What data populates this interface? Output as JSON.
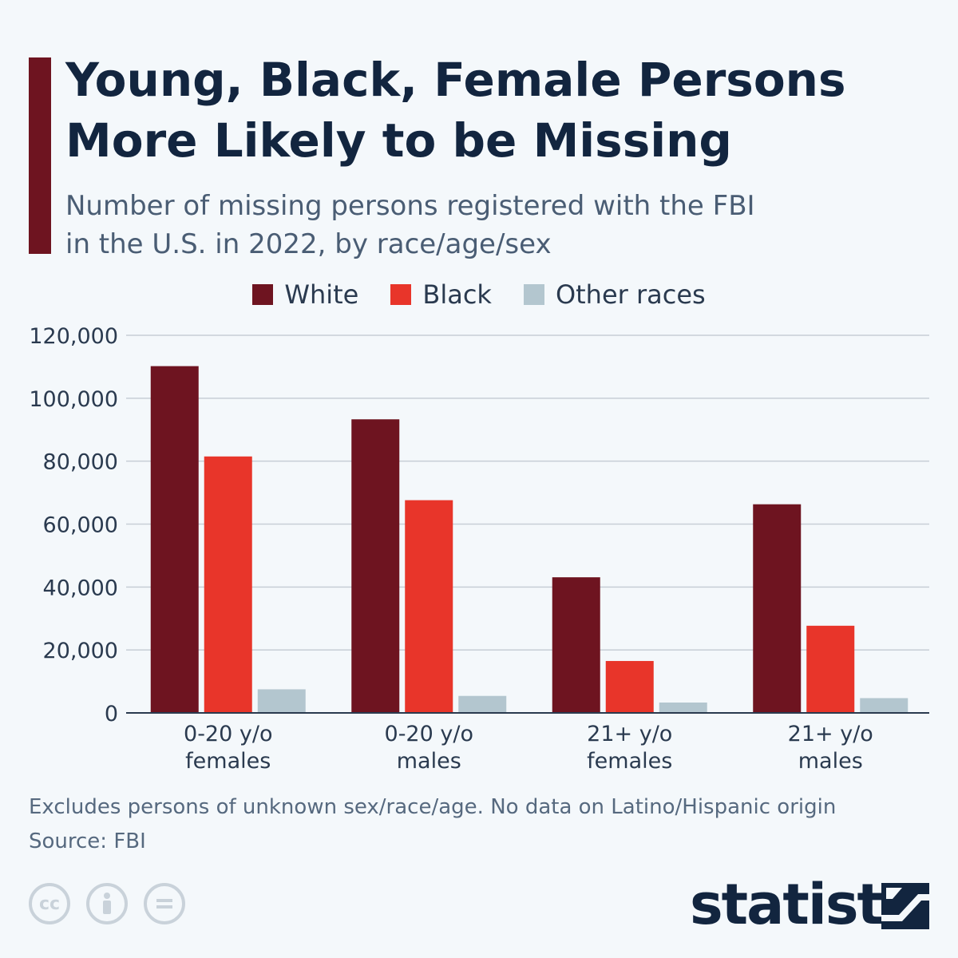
{
  "header": {
    "title": "Young, Black, Female Persons More Likely to be Missing",
    "subtitle": "Number of missing persons registered with the FBI in the U.S. in 2022, by race/age/sex"
  },
  "legend": [
    {
      "label": "White",
      "color": "#6e1420"
    },
    {
      "label": "Black",
      "color": "#e8352a"
    },
    {
      "label": "Other races",
      "color": "#b3c6cf"
    }
  ],
  "chart_data": {
    "type": "bar",
    "title": "Young, Black, Female Persons More Likely to be Missing",
    "subtitle": "Number of missing persons registered with the FBI in the U.S. in 2022, by race/age/sex",
    "categories": [
      [
        "0-20 y/o",
        "females"
      ],
      [
        "0-20 y/o",
        "males"
      ],
      [
        "21+ y/o",
        "females"
      ],
      [
        "21+ y/o",
        "males"
      ]
    ],
    "series": [
      {
        "name": "White",
        "color": "#6e1420",
        "values": [
          110200,
          93300,
          43100,
          66300
        ]
      },
      {
        "name": "Black",
        "color": "#e8352a",
        "values": [
          81500,
          67600,
          16500,
          27700
        ]
      },
      {
        "name": "Other races",
        "color": "#b3c6cf",
        "values": [
          7500,
          5400,
          3300,
          4700
        ]
      }
    ],
    "ylim": [
      0,
      120000
    ],
    "yticks": [
      "0",
      "20,000",
      "40,000",
      "60,000",
      "80,000",
      "100,000",
      "120,000"
    ],
    "ytick_values": [
      0,
      20000,
      40000,
      60000,
      80000,
      100000,
      120000
    ],
    "grid": true,
    "legend_position": "top-center"
  },
  "footer": {
    "note": "Excludes persons of unknown sex/race/age. No data on Latino/Hispanic origin",
    "source": "Source: FBI"
  },
  "branding": {
    "cc_icons": [
      "cc-icon",
      "attribution-icon",
      "no-derivatives-icon"
    ],
    "name": "statista"
  }
}
